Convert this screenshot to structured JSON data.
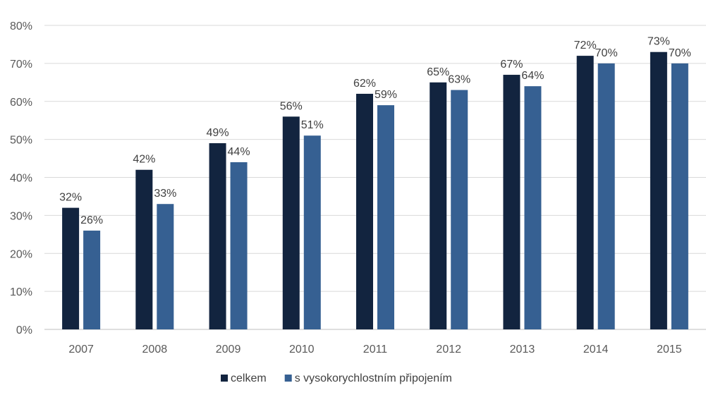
{
  "chart_data": {
    "type": "bar",
    "categories": [
      "2007",
      "2008",
      "2009",
      "2010",
      "2011",
      "2012",
      "2013",
      "2014",
      "2015"
    ],
    "series": [
      {
        "name": "celkem",
        "color": "#12243f",
        "values": [
          32,
          42,
          49,
          56,
          62,
          65,
          67,
          72,
          73
        ]
      },
      {
        "name": "s vysokorychlostním připojením",
        "color": "#366092",
        "values": [
          26,
          33,
          44,
          51,
          59,
          63,
          64,
          70,
          70
        ]
      }
    ],
    "data_label_suffix": "%",
    "ylim": [
      0,
      80
    ],
    "yticks": [
      0,
      10,
      20,
      30,
      40,
      50,
      60,
      70,
      80
    ],
    "ytick_labels": [
      "0%",
      "10%",
      "20%",
      "30%",
      "40%",
      "50%",
      "60%",
      "70%",
      "80%"
    ],
    "grid": true,
    "legend_position": "bottom-center",
    "title": "",
    "xlabel": "",
    "ylabel": ""
  }
}
